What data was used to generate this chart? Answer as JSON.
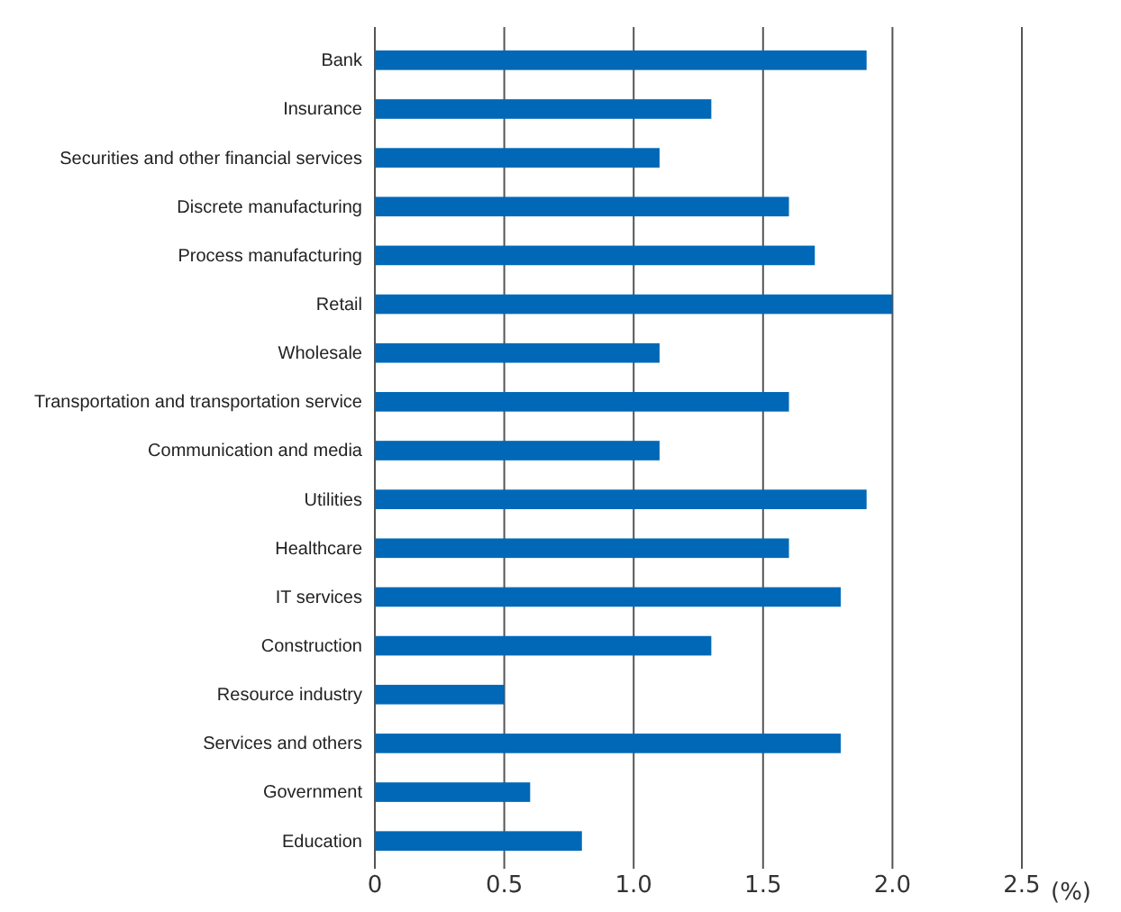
{
  "chart_data": {
    "type": "bar",
    "orientation": "horizontal",
    "xlabel": "(%)",
    "categories": [
      "Bank",
      "Insurance",
      "Securities and other financial services",
      "Discrete manufacturing",
      "Process manufacturing",
      "Retail",
      "Wholesale",
      "Transportation and transportation service",
      "Communication and media",
      "Utilities",
      "Healthcare",
      "IT services",
      "Construction",
      "Resource industry",
      "Services and others",
      "Government",
      "Education"
    ],
    "values": [
      1.9,
      1.3,
      1.1,
      1.6,
      1.7,
      2.0,
      1.1,
      1.6,
      1.1,
      1.9,
      1.6,
      1.8,
      1.3,
      0.5,
      1.8,
      0.6,
      0.8
    ],
    "color": "#0068b7",
    "xlim": [
      0,
      2.5
    ],
    "xticks": [
      0,
      0.5,
      {
        "value": 1,
        "label": "1.0"
      },
      1.5,
      {
        "value": 2,
        "label": "2.0"
      },
      2.5
    ],
    "grid": "x"
  }
}
